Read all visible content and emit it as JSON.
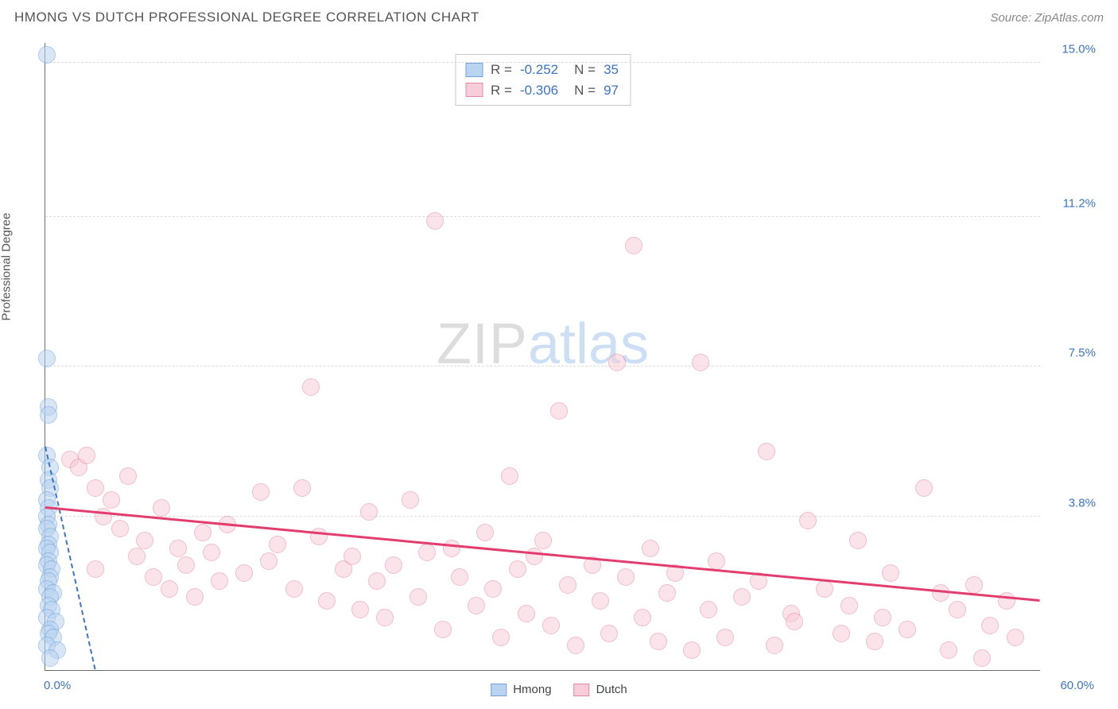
{
  "header": {
    "title": "HMONG VS DUTCH PROFESSIONAL DEGREE CORRELATION CHART",
    "source": "Source: ZipAtlas.com"
  },
  "watermark": {
    "zip": "ZIP",
    "atlas": "atlas"
  },
  "chart": {
    "type": "scatter",
    "ylabel": "Professional Degree",
    "xlim": [
      0,
      60
    ],
    "ylim": [
      0,
      15.5
    ],
    "x_ticks": [
      {
        "value": 0,
        "label": "0.0%",
        "color": "#3b74c9",
        "align": "left"
      },
      {
        "value": 60,
        "label": "60.0%",
        "color": "#3b74c9",
        "align": "right"
      }
    ],
    "y_ticks": [
      {
        "value": 3.8,
        "label": "3.8%",
        "color": "#3b74c9"
      },
      {
        "value": 7.5,
        "label": "7.5%",
        "color": "#3b74c9"
      },
      {
        "value": 11.2,
        "label": "11.2%",
        "color": "#3b74c9"
      },
      {
        "value": 15.0,
        "label": "15.0%",
        "color": "#3b74c9"
      }
    ],
    "grid_color": "#dcdcdc",
    "axis_color": "#6b6b6b",
    "background_color": "#ffffff",
    "point_radius": 11,
    "point_opacity": 0.55,
    "series": [
      {
        "name": "Hmong",
        "fill": "#b9d3f0",
        "stroke": "#6fa3dd",
        "trend_color": "#3b74c9",
        "trend_dashed": true,
        "trend": {
          "x1": 0,
          "y1": 5.5,
          "x2": 3.0,
          "y2": 0.0
        },
        "R": "-0.252",
        "N": "35",
        "points": [
          [
            0.1,
            15.2
          ],
          [
            0.1,
            7.7
          ],
          [
            0.2,
            6.5
          ],
          [
            0.2,
            6.3
          ],
          [
            0.1,
            5.3
          ],
          [
            0.3,
            5.0
          ],
          [
            0.2,
            4.7
          ],
          [
            0.3,
            4.5
          ],
          [
            0.1,
            4.2
          ],
          [
            0.2,
            4.0
          ],
          [
            0.1,
            3.8
          ],
          [
            0.2,
            3.6
          ],
          [
            0.1,
            3.5
          ],
          [
            0.3,
            3.3
          ],
          [
            0.2,
            3.1
          ],
          [
            0.1,
            3.0
          ],
          [
            0.3,
            2.9
          ],
          [
            0.2,
            2.7
          ],
          [
            0.1,
            2.6
          ],
          [
            0.4,
            2.5
          ],
          [
            0.3,
            2.3
          ],
          [
            0.2,
            2.2
          ],
          [
            0.1,
            2.0
          ],
          [
            0.5,
            1.9
          ],
          [
            0.3,
            1.8
          ],
          [
            0.2,
            1.6
          ],
          [
            0.4,
            1.5
          ],
          [
            0.1,
            1.3
          ],
          [
            0.6,
            1.2
          ],
          [
            0.3,
            1.0
          ],
          [
            0.2,
            0.9
          ],
          [
            0.5,
            0.8
          ],
          [
            0.1,
            0.6
          ],
          [
            0.7,
            0.5
          ],
          [
            0.3,
            0.3
          ]
        ]
      },
      {
        "name": "Dutch",
        "fill": "#f6cdd8",
        "stroke": "#e788a3",
        "trend_color": "#e23d6e",
        "trend_dashed": false,
        "trend": {
          "x1": 0,
          "y1": 4.0,
          "x2": 60,
          "y2": 1.7
        },
        "R": "-0.306",
        "N": "97",
        "points": [
          [
            1.5,
            5.2
          ],
          [
            2.0,
            5.0
          ],
          [
            2.5,
            5.3
          ],
          [
            3.0,
            4.5
          ],
          [
            3.5,
            3.8
          ],
          [
            3.0,
            2.5
          ],
          [
            4.0,
            4.2
          ],
          [
            4.5,
            3.5
          ],
          [
            5.0,
            4.8
          ],
          [
            5.5,
            2.8
          ],
          [
            6.0,
            3.2
          ],
          [
            6.5,
            2.3
          ],
          [
            7.0,
            4.0
          ],
          [
            7.5,
            2.0
          ],
          [
            8.0,
            3.0
          ],
          [
            8.5,
            2.6
          ],
          [
            9.0,
            1.8
          ],
          [
            9.5,
            3.4
          ],
          [
            10.0,
            2.9
          ],
          [
            10.5,
            2.2
          ],
          [
            11.0,
            3.6
          ],
          [
            12.0,
            2.4
          ],
          [
            13.0,
            4.4
          ],
          [
            13.5,
            2.7
          ],
          [
            14.0,
            3.1
          ],
          [
            15.0,
            2.0
          ],
          [
            15.5,
            4.5
          ],
          [
            16.0,
            7.0
          ],
          [
            16.5,
            3.3
          ],
          [
            17.0,
            1.7
          ],
          [
            18.0,
            2.5
          ],
          [
            18.5,
            2.8
          ],
          [
            19.0,
            1.5
          ],
          [
            19.5,
            3.9
          ],
          [
            20.0,
            2.2
          ],
          [
            20.5,
            1.3
          ],
          [
            21.0,
            2.6
          ],
          [
            22.0,
            4.2
          ],
          [
            22.5,
            1.8
          ],
          [
            23.0,
            2.9
          ],
          [
            23.5,
            11.1
          ],
          [
            24.0,
            1.0
          ],
          [
            24.5,
            3.0
          ],
          [
            25.0,
            2.3
          ],
          [
            26.0,
            1.6
          ],
          [
            26.5,
            3.4
          ],
          [
            27.0,
            2.0
          ],
          [
            27.5,
            0.8
          ],
          [
            28.0,
            4.8
          ],
          [
            28.5,
            2.5
          ],
          [
            29.0,
            1.4
          ],
          [
            29.5,
            2.8
          ],
          [
            30.0,
            3.2
          ],
          [
            30.5,
            1.1
          ],
          [
            31.0,
            6.4
          ],
          [
            31.5,
            2.1
          ],
          [
            32.0,
            0.6
          ],
          [
            33.0,
            2.6
          ],
          [
            33.5,
            1.7
          ],
          [
            34.0,
            0.9
          ],
          [
            34.5,
            7.6
          ],
          [
            35.0,
            2.3
          ],
          [
            35.5,
            10.5
          ],
          [
            36.0,
            1.3
          ],
          [
            36.5,
            3.0
          ],
          [
            37.0,
            0.7
          ],
          [
            37.5,
            1.9
          ],
          [
            38.0,
            2.4
          ],
          [
            39.0,
            0.5
          ],
          [
            39.5,
            7.6
          ],
          [
            40.0,
            1.5
          ],
          [
            40.5,
            2.7
          ],
          [
            41.0,
            0.8
          ],
          [
            42.0,
            1.8
          ],
          [
            43.0,
            2.2
          ],
          [
            43.5,
            5.4
          ],
          [
            44.0,
            0.6
          ],
          [
            45.0,
            1.4
          ],
          [
            45.2,
            1.2
          ],
          [
            46.0,
            3.7
          ],
          [
            47.0,
            2.0
          ],
          [
            48.0,
            0.9
          ],
          [
            48.5,
            1.6
          ],
          [
            49.0,
            3.2
          ],
          [
            50.0,
            0.7
          ],
          [
            50.5,
            1.3
          ],
          [
            51.0,
            2.4
          ],
          [
            52.0,
            1.0
          ],
          [
            53.0,
            4.5
          ],
          [
            54.0,
            1.9
          ],
          [
            54.5,
            0.5
          ],
          [
            55.0,
            1.5
          ],
          [
            56.0,
            2.1
          ],
          [
            56.5,
            0.3
          ],
          [
            57.0,
            1.1
          ],
          [
            58.0,
            1.7
          ],
          [
            58.5,
            0.8
          ]
        ]
      }
    ],
    "stats_value_color": "#3b74c9",
    "stats_label_color": "#555555"
  },
  "legend": {
    "items": [
      {
        "label": "Hmong",
        "fill": "#b9d3f0",
        "stroke": "#6fa3dd"
      },
      {
        "label": "Dutch",
        "fill": "#f6cdd8",
        "stroke": "#e788a3"
      }
    ]
  }
}
